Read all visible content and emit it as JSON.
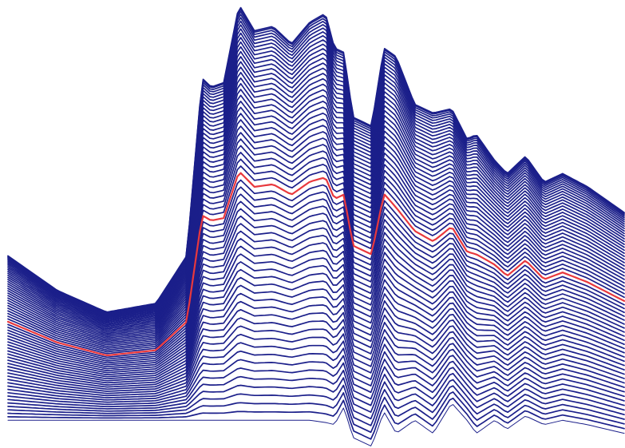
{
  "chart_data": {
    "type": "line",
    "title": "",
    "xlabel": "",
    "ylabel": "",
    "grid": false,
    "legend": "none",
    "trace_count": 64,
    "highlighted_trace_index": 32,
    "colors": {
      "trace": "#1b1f8a",
      "highlight": "#e8383d",
      "background": "#ffffff"
    },
    "profile_x": [
      0,
      0.08,
      0.16,
      0.24,
      0.29,
      0.315,
      0.33,
      0.35,
      0.375,
      0.4,
      0.43,
      0.46,
      0.49,
      0.515,
      0.53,
      0.545,
      0.56,
      0.59,
      0.61,
      0.63,
      0.66,
      0.69,
      0.72,
      0.745,
      0.76,
      0.79,
      0.81,
      0.84,
      0.87,
      0.9,
      0.94,
      0.97,
      1.0
    ],
    "profile_y_top": [
      0.58,
      0.66,
      0.71,
      0.69,
      0.58,
      0.17,
      0.19,
      0.18,
      0.0,
      0.06,
      0.05,
      0.09,
      0.04,
      0.02,
      0.1,
      0.11,
      0.26,
      0.28,
      0.1,
      0.12,
      0.23,
      0.25,
      0.24,
      0.31,
      0.3,
      0.36,
      0.39,
      0.35,
      0.41,
      0.39,
      0.42,
      0.45,
      0.48
    ],
    "profile_y_bottom": [
      0.96,
      0.96,
      0.96,
      0.96,
      0.96,
      0.96,
      0.96,
      0.96,
      0.96,
      0.96,
      0.96,
      0.96,
      0.96,
      0.965,
      0.97,
      0.93,
      1.0,
      1.02,
      0.94,
      0.99,
      0.96,
      0.99,
      0.92,
      0.96,
      0.99,
      0.96,
      0.98,
      0.95,
      0.97,
      0.96,
      0.97,
      0.98,
      0.99
    ]
  }
}
